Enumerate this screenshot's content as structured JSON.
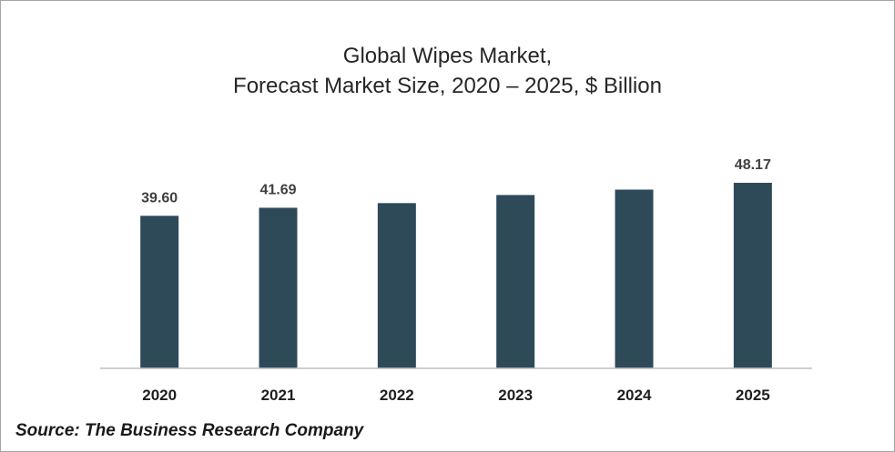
{
  "chart_data": {
    "type": "bar",
    "title": "Global Wipes Market,",
    "subtitle": "Forecast Market Size, 2020 – 2025, $ Billion",
    "categories": [
      "2020",
      "2021",
      "2022",
      "2023",
      "2024",
      "2025"
    ],
    "values": [
      39.6,
      41.69,
      42.9,
      45.0,
      46.4,
      48.17
    ],
    "data_labels": [
      "39.60",
      "41.69",
      "",
      "",
      "",
      "48.17"
    ],
    "xlabel": "",
    "ylabel": "",
    "ylim": [
      0,
      48.17
    ],
    "grid": false,
    "legend": "none"
  },
  "colors": {
    "bar": "#2e4a59",
    "axis": "#bfbfbf",
    "label": "#404040",
    "tick": "#1f1f1f"
  },
  "source": "Source: The Business Research Company"
}
